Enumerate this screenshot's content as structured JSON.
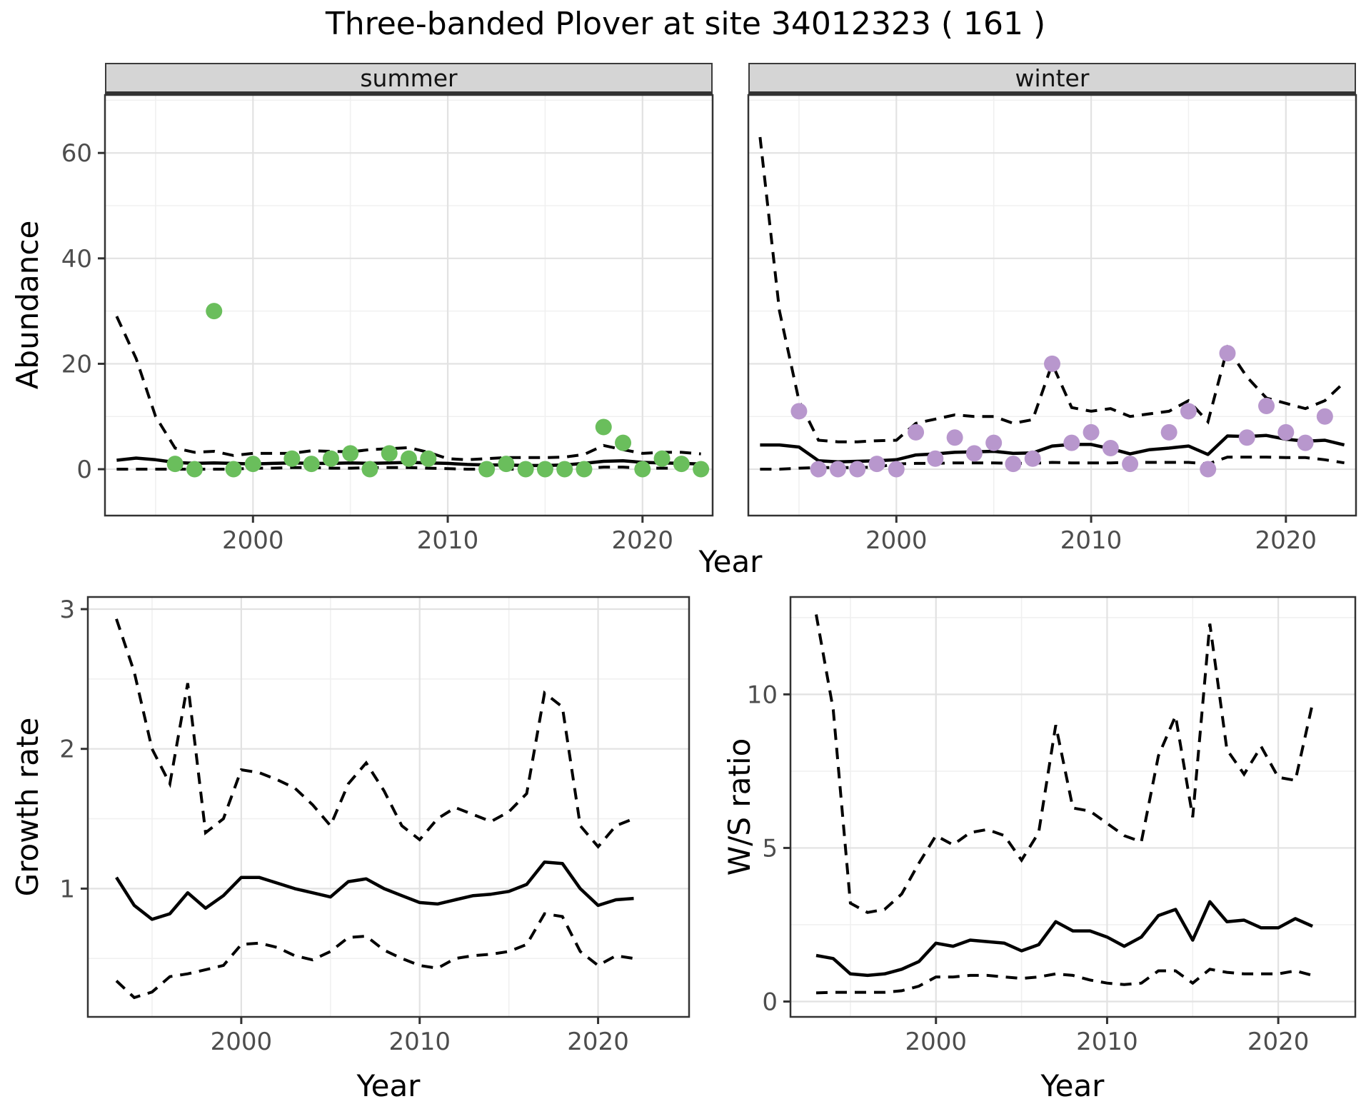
{
  "title": "Three-banded Plover at site 34012323 ( 161 )",
  "axes": {
    "abundance_label": "Abundance",
    "growth_label": "Growth rate",
    "ws_label": "W/S ratio",
    "year_label_top": "Year",
    "year_label_growth": "Year",
    "year_label_ws": "Year"
  },
  "facets": {
    "summer": "summer",
    "winter": "winter"
  },
  "colors": {
    "summer_point": "#6abe5c",
    "winter_point": "#b897cd",
    "line": "#000000",
    "panel_border": "#333333",
    "grid_major": "#e2e2e2",
    "grid_minor": "#f0f0f0",
    "tick_text": "#4d4d4d",
    "strip_bg": "#d5d5d5"
  },
  "chart_data": [
    {
      "id": "abundance_summer",
      "type": "line",
      "facet": "summer",
      "ylabel": "Abundance",
      "xlabel": "Year",
      "xlim": [
        1992.4,
        2023.6
      ],
      "ylim": [
        -8.8,
        71
      ],
      "x_major": [
        2000,
        2010,
        2020
      ],
      "x_minor": [
        1995,
        2005,
        2015
      ],
      "y_major": [
        0,
        20,
        40,
        60
      ],
      "y_minor": [
        10,
        30,
        50,
        70
      ],
      "x_tick_labels": [
        "2000",
        "2010",
        "2020"
      ],
      "y_tick_labels": [
        "0",
        "20",
        "40",
        "60"
      ],
      "grid": true,
      "legend": "none",
      "point_color": "#6abe5c",
      "years": [
        1993,
        1994,
        1995,
        1996,
        1997,
        1998,
        1999,
        2000,
        2001,
        2002,
        2003,
        2004,
        2005,
        2006,
        2007,
        2008,
        2009,
        2010,
        2011,
        2012,
        2013,
        2014,
        2015,
        2016,
        2017,
        2018,
        2019,
        2020,
        2021,
        2022,
        2023
      ],
      "upper_dashed": [
        29,
        21,
        10,
        4,
        3.2,
        3.4,
        2.6,
        3,
        3,
        3,
        3.5,
        3.4,
        3.3,
        3.7,
        3.9,
        4.1,
        3.2,
        2,
        1.8,
        2,
        2.2,
        2.2,
        2.2,
        2.3,
        2.8,
        4.5,
        3.7,
        3,
        3.2,
        3.2,
        2.9
      ],
      "median_solid": [
        1.7,
        2.1,
        1.8,
        1.3,
        1.1,
        1.2,
        1.1,
        1.0,
        1.1,
        1.2,
        1.1,
        1.1,
        1.2,
        1.1,
        1.2,
        1.3,
        1.2,
        1.1,
        0.9,
        0.8,
        0.8,
        0.7,
        0.7,
        0.8,
        1.1,
        1.5,
        1.6,
        1.3,
        1.2,
        1.1,
        1.0
      ],
      "lower_dashed": [
        0,
        0,
        0,
        0,
        0,
        0,
        0,
        0.2,
        0.2,
        0.3,
        0.3,
        0.2,
        0.2,
        0.3,
        0.3,
        0.3,
        0.2,
        0.1,
        0,
        0,
        0,
        0,
        0,
        0,
        0.1,
        0.4,
        0.4,
        0.2,
        0.2,
        0.2,
        0.1
      ],
      "points": [
        [
          1996,
          1
        ],
        [
          1997,
          0
        ],
        [
          1998,
          30
        ],
        [
          1999,
          0
        ],
        [
          2000,
          1
        ],
        [
          2002,
          2
        ],
        [
          2003,
          1
        ],
        [
          2004,
          2
        ],
        [
          2005,
          3
        ],
        [
          2006,
          0
        ],
        [
          2007,
          3
        ],
        [
          2008,
          2
        ],
        [
          2009,
          2
        ],
        [
          2012,
          0
        ],
        [
          2013,
          1
        ],
        [
          2014,
          0
        ],
        [
          2015,
          0
        ],
        [
          2016,
          0
        ],
        [
          2017,
          0
        ],
        [
          2018,
          8
        ],
        [
          2019,
          5
        ],
        [
          2020,
          0
        ],
        [
          2021,
          2
        ],
        [
          2022,
          1
        ],
        [
          2023,
          0
        ]
      ]
    },
    {
      "id": "abundance_winter",
      "type": "line",
      "facet": "winter",
      "ylabel": "Abundance",
      "xlabel": "Year",
      "xlim": [
        1992.4,
        2023.6
      ],
      "ylim": [
        -8.8,
        71
      ],
      "x_major": [
        2000,
        2010,
        2020
      ],
      "x_minor": [
        1995,
        2005,
        2015
      ],
      "y_major": [
        0,
        20,
        40,
        60
      ],
      "y_minor": [
        10,
        30,
        50,
        70
      ],
      "x_tick_labels": [
        "2000",
        "2010",
        "2020"
      ],
      "y_tick_labels": [],
      "grid": true,
      "legend": "none",
      "point_color": "#b897cd",
      "years": [
        1993,
        1994,
        1995,
        1996,
        1997,
        1998,
        1999,
        2000,
        2001,
        2002,
        2003,
        2004,
        2005,
        2006,
        2007,
        2008,
        2009,
        2010,
        2011,
        2012,
        2013,
        2014,
        2015,
        2016,
        2017,
        2018,
        2019,
        2020,
        2021,
        2022,
        2023
      ],
      "upper_dashed": [
        63,
        30,
        13,
        5.5,
        5.2,
        5.2,
        5.4,
        5.5,
        8.7,
        9.5,
        10.3,
        10,
        10,
        8.7,
        9.4,
        20,
        11.7,
        11,
        11.5,
        10,
        10.5,
        11,
        13,
        9,
        23,
        17.5,
        13.5,
        12.5,
        11.5,
        13,
        16.5
      ],
      "median_solid": [
        4.6,
        4.6,
        4.2,
        1.6,
        1.4,
        1.5,
        1.6,
        1.8,
        2.7,
        2.9,
        3.2,
        3.3,
        3.4,
        3.0,
        3.1,
        4.4,
        4.7,
        4.7,
        3.9,
        2.9,
        3.7,
        4.0,
        4.4,
        2.8,
        6.3,
        6.2,
        6.4,
        5.7,
        5.3,
        5.5,
        4.6
      ],
      "lower_dashed": [
        0,
        0,
        0.2,
        0.3,
        0.3,
        0.3,
        0.4,
        1.0,
        1.1,
        1.1,
        1.2,
        1.2,
        1.2,
        1.1,
        1.1,
        1.3,
        1.2,
        1.2,
        1.2,
        1.3,
        1.3,
        1.3,
        1.3,
        1.0,
        2.3,
        2.3,
        2.3,
        2.2,
        2.2,
        1.8,
        1.2
      ],
      "points": [
        [
          1995,
          11
        ],
        [
          1996,
          0
        ],
        [
          1997,
          0
        ],
        [
          1998,
          0
        ],
        [
          1999,
          1
        ],
        [
          2000,
          0
        ],
        [
          2001,
          7
        ],
        [
          2002,
          2
        ],
        [
          2003,
          6
        ],
        [
          2004,
          3
        ],
        [
          2005,
          5
        ],
        [
          2006,
          1
        ],
        [
          2007,
          2
        ],
        [
          2008,
          20
        ],
        [
          2009,
          5
        ],
        [
          2010,
          7
        ],
        [
          2011,
          4
        ],
        [
          2012,
          1
        ],
        [
          2014,
          7
        ],
        [
          2015,
          11
        ],
        [
          2016,
          0
        ],
        [
          2017,
          22
        ],
        [
          2018,
          6
        ],
        [
          2019,
          12
        ],
        [
          2020,
          7
        ],
        [
          2021,
          5
        ],
        [
          2022,
          10
        ]
      ]
    },
    {
      "id": "growth_rate",
      "type": "line",
      "facet": null,
      "ylabel": "Growth rate",
      "xlabel": "Year",
      "xlim": [
        1991.4,
        2025.1
      ],
      "ylim": [
        0.082,
        3.087
      ],
      "x_major": [
        2000,
        2010,
        2020
      ],
      "x_minor": [
        1995,
        2005,
        2015
      ],
      "y_major": [
        1,
        2,
        3
      ],
      "y_minor": [
        0.5,
        1.5,
        2.5
      ],
      "x_tick_labels": [
        "2000",
        "2010",
        "2020"
      ],
      "y_tick_labels": [
        "1",
        "2",
        "3"
      ],
      "grid": true,
      "legend": "none",
      "point_color": null,
      "years": [
        1993,
        1994,
        1995,
        1996,
        1997,
        1998,
        1999,
        2000,
        2001,
        2002,
        2003,
        2004,
        2005,
        2006,
        2007,
        2008,
        2009,
        2010,
        2011,
        2012,
        2013,
        2014,
        2015,
        2016,
        2017,
        2018,
        2019,
        2020,
        2021,
        2022
      ],
      "upper_dashed": [
        2.93,
        2.55,
        2.0,
        1.75,
        2.47,
        1.4,
        1.5,
        1.85,
        1.83,
        1.78,
        1.72,
        1.6,
        1.45,
        1.75,
        1.9,
        1.7,
        1.45,
        1.35,
        1.5,
        1.58,
        1.53,
        1.48,
        1.55,
        1.68,
        2.4,
        2.3,
        1.45,
        1.3,
        1.45,
        1.5
      ],
      "median_solid": [
        1.08,
        0.88,
        0.78,
        0.82,
        0.97,
        0.86,
        0.95,
        1.08,
        1.08,
        1.04,
        1.0,
        0.97,
        0.94,
        1.05,
        1.07,
        1.0,
        0.95,
        0.9,
        0.89,
        0.92,
        0.95,
        0.96,
        0.98,
        1.03,
        1.19,
        1.18,
        1.0,
        0.88,
        0.92,
        0.93
      ],
      "lower_dashed": [
        0.34,
        0.22,
        0.26,
        0.37,
        0.39,
        0.42,
        0.45,
        0.6,
        0.61,
        0.58,
        0.52,
        0.49,
        0.55,
        0.65,
        0.66,
        0.56,
        0.5,
        0.45,
        0.43,
        0.5,
        0.52,
        0.53,
        0.55,
        0.6,
        0.82,
        0.8,
        0.55,
        0.45,
        0.52,
        0.5
      ],
      "points": []
    },
    {
      "id": "ws_ratio",
      "type": "line",
      "facet": null,
      "ylabel": "W/S ratio",
      "xlabel": "Year",
      "xlim": [
        1991.5,
        2024.5
      ],
      "ylim": [
        -0.5,
        13.17
      ],
      "x_major": [
        2000,
        2010,
        2020
      ],
      "x_minor": [
        1995,
        2005,
        2015
      ],
      "y_major": [
        0,
        5,
        10
      ],
      "y_minor": [
        2.5,
        7.5,
        12.5
      ],
      "x_tick_labels": [
        "2000",
        "2010",
        "2020"
      ],
      "y_tick_labels": [
        "0",
        "5",
        "10"
      ],
      "grid": true,
      "legend": "none",
      "point_color": null,
      "years": [
        1993,
        1994,
        1995,
        1996,
        1997,
        1998,
        1999,
        2000,
        2001,
        2002,
        2003,
        2004,
        2005,
        2006,
        2007,
        2008,
        2009,
        2010,
        2011,
        2012,
        2013,
        2014,
        2015,
        2016,
        2017,
        2018,
        2019,
        2020,
        2021,
        2022
      ],
      "upper_dashed": [
        12.6,
        9.5,
        3.2,
        2.9,
        3.0,
        3.5,
        4.5,
        5.4,
        5.1,
        5.5,
        5.6,
        5.4,
        4.6,
        5.5,
        9.0,
        6.3,
        6.2,
        5.8,
        5.4,
        5.2,
        8.0,
        9.3,
        6.0,
        12.3,
        8.2,
        7.4,
        8.3,
        7.3,
        7.2,
        9.7
      ],
      "median_solid": [
        1.5,
        1.4,
        0.9,
        0.85,
        0.9,
        1.05,
        1.3,
        1.9,
        1.8,
        2.0,
        1.95,
        1.9,
        1.65,
        1.85,
        2.6,
        2.3,
        2.3,
        2.1,
        1.8,
        2.1,
        2.8,
        3.0,
        2.0,
        3.25,
        2.6,
        2.65,
        2.4,
        2.4,
        2.7,
        2.45
      ],
      "lower_dashed": [
        0.28,
        0.3,
        0.3,
        0.3,
        0.3,
        0.35,
        0.5,
        0.8,
        0.8,
        0.85,
        0.85,
        0.8,
        0.75,
        0.8,
        0.9,
        0.85,
        0.7,
        0.6,
        0.55,
        0.6,
        1.0,
        1.0,
        0.6,
        1.05,
        0.95,
        0.9,
        0.9,
        0.9,
        1.0,
        0.85
      ],
      "points": []
    }
  ]
}
